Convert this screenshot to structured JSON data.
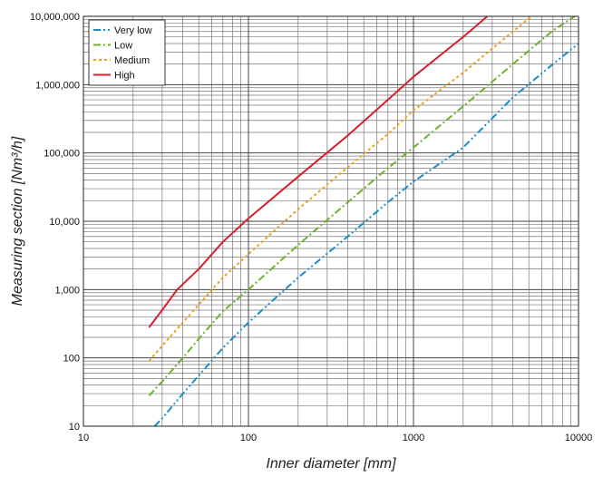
{
  "chart_data": {
    "type": "line",
    "xlabel": "Inner diameter [mm]",
    "ylabel": "Measuring section [Nm³/h]",
    "xscale": "log",
    "yscale": "log",
    "xlim": [
      10,
      10000
    ],
    "ylim": [
      10,
      10000000
    ],
    "grid": true,
    "legend_position": "top-left",
    "x_tick_labels": [
      "10",
      "100",
      "1000",
      "10000"
    ],
    "y_tick_labels": [
      "10",
      "100",
      "1,000",
      "10,000",
      "100,000",
      "1,000,000",
      "10,000,000"
    ],
    "series": [
      {
        "name": "Very low",
        "color": "#1b8ec9",
        "dash": "dash-dot-dot",
        "x": [
          27,
          30,
          40,
          50,
          70,
          100,
          200,
          400,
          700,
          1000,
          2000,
          4000,
          7000,
          10000
        ],
        "y": [
          10,
          13,
          30,
          55,
          140,
          330,
          1500,
          6000,
          19000,
          38000,
          120000,
          650000,
          2000000,
          4000000
        ]
      },
      {
        "name": "Low",
        "color": "#6cb22f",
        "dash": "dash-dot",
        "x": [
          25,
          30,
          40,
          50,
          70,
          100,
          200,
          400,
          700,
          1000,
          2000,
          4000,
          7000,
          9500
        ],
        "y": [
          28,
          45,
          100,
          190,
          480,
          1000,
          4500,
          19000,
          60000,
          120000,
          480000,
          2000000,
          6200000,
          10000000
        ]
      },
      {
        "name": "Medium",
        "color": "#f0a020",
        "dash": "dotted",
        "x": [
          25,
          30,
          40,
          50,
          70,
          100,
          200,
          400,
          700,
          1000,
          2000,
          4000,
          5200
        ],
        "y": [
          90,
          150,
          330,
          600,
          1500,
          3300,
          15000,
          62000,
          190000,
          420000,
          1500000,
          6000000,
          10000000
        ]
      },
      {
        "name": "High",
        "color": "#d4202f",
        "dash": "solid",
        "x": [
          25,
          30,
          37,
          50,
          70,
          100,
          200,
          400,
          700,
          1000,
          2000,
          2800
        ],
        "y": [
          280,
          500,
          1000,
          2000,
          5000,
          11000,
          45000,
          180000,
          600000,
          1300000,
          5000000,
          10000000
        ]
      }
    ]
  }
}
